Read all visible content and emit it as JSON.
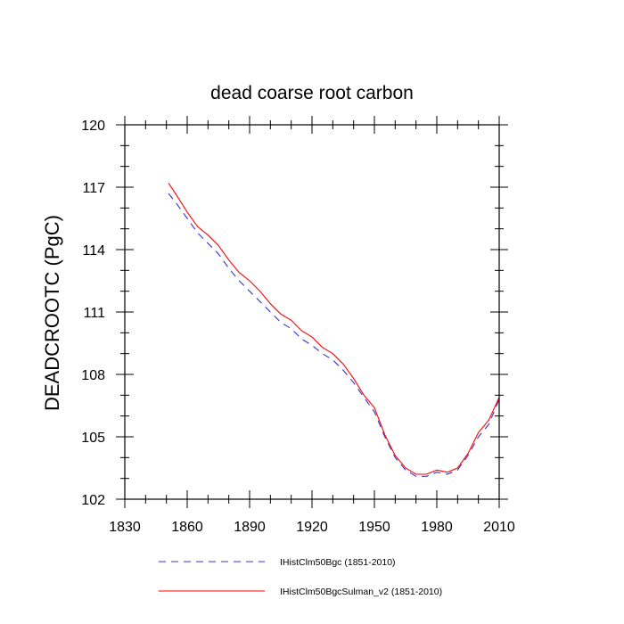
{
  "chart_data": {
    "type": "line",
    "title": "dead coarse root carbon",
    "xlabel": "",
    "ylabel": "DEADCROOTC  (PgC)",
    "xlim": [
      1830,
      2010
    ],
    "ylim": [
      102,
      120
    ],
    "xticks": [
      1830,
      1860,
      1890,
      1920,
      1950,
      1980,
      2010
    ],
    "yticks": [
      102,
      105,
      108,
      111,
      114,
      117,
      120
    ],
    "grid": false,
    "legend": "bottom",
    "series": [
      {
        "name": "IHistClm50Bgc (1851-2010)",
        "color": "#3333dd",
        "dash": "dashed",
        "x": [
          1851,
          1855,
          1860,
          1865,
          1870,
          1875,
          1880,
          1885,
          1890,
          1895,
          1900,
          1905,
          1910,
          1915,
          1920,
          1925,
          1930,
          1935,
          1940,
          1945,
          1950,
          1955,
          1960,
          1965,
          1970,
          1975,
          1980,
          1985,
          1990,
          1995,
          2000,
          2005,
          2010
        ],
        "values": [
          116.7,
          116.2,
          115.5,
          114.8,
          114.3,
          113.8,
          113.1,
          112.5,
          112.0,
          111.5,
          111.0,
          110.5,
          110.2,
          109.7,
          109.4,
          109.0,
          108.7,
          108.2,
          107.6,
          106.9,
          106.2,
          105.0,
          104.0,
          103.4,
          103.1,
          103.1,
          103.3,
          103.2,
          103.4,
          104.1,
          105.0,
          105.6,
          106.8
        ]
      },
      {
        "name": "IHistClm50BgcSulman_v2 (1851-2010)",
        "color": "#ff0000",
        "dash": "solid",
        "x": [
          1851,
          1855,
          1860,
          1865,
          1870,
          1875,
          1880,
          1885,
          1890,
          1895,
          1900,
          1905,
          1910,
          1915,
          1920,
          1925,
          1930,
          1935,
          1940,
          1945,
          1950,
          1955,
          1960,
          1965,
          1970,
          1975,
          1980,
          1985,
          1990,
          1995,
          2000,
          2005,
          2010
        ],
        "values": [
          117.2,
          116.6,
          115.8,
          115.1,
          114.7,
          114.2,
          113.5,
          112.9,
          112.5,
          112.0,
          111.4,
          110.9,
          110.6,
          110.1,
          109.8,
          109.3,
          109.0,
          108.5,
          107.8,
          107.0,
          106.4,
          105.1,
          104.1,
          103.5,
          103.2,
          103.2,
          103.4,
          103.3,
          103.5,
          104.2,
          105.2,
          105.8,
          106.9
        ]
      }
    ]
  }
}
